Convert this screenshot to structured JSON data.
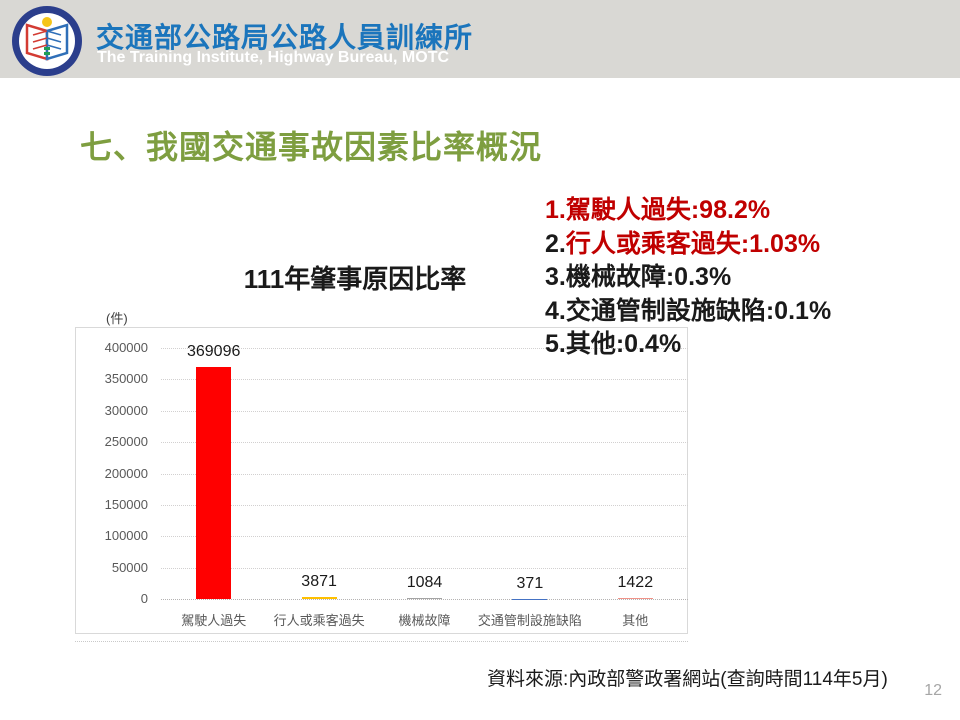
{
  "header": {
    "title_zh": "交通部公路局公路人員訓練所",
    "title_en": "The Training Institute, Highway Bureau, MOTC",
    "logo_name": "motc-training-institute-emblem",
    "bg_color": "#d9d8d4",
    "title_color": "#1b75bc"
  },
  "slide": {
    "title": "七、我國交通事故因素比率概況",
    "title_color": "#7e9e40",
    "source_note": "資料來源:內政部警政署網站(查詢時間114年5月)",
    "page_number": "12"
  },
  "factor_list": {
    "items": [
      {
        "prefix": "1.",
        "text": "駕駛人過失:98.2%",
        "prefix_color": "#c00000",
        "text_color": "#c00000"
      },
      {
        "prefix": "2.",
        "text": "行人或乘客過失:1.03%",
        "prefix_color": "#1a1a1a",
        "text_color": "#c00000"
      },
      {
        "prefix": "3.",
        "text": "機械故障:0.3%",
        "prefix_color": "#1a1a1a",
        "text_color": "#1a1a1a"
      },
      {
        "prefix": "4.",
        "text": "交通管制設施缺陷:0.1%",
        "prefix_color": "#1a1a1a",
        "text_color": "#1a1a1a"
      },
      {
        "prefix": "5.",
        "text": "其他:0.4%",
        "prefix_color": "#1a1a1a",
        "text_color": "#1a1a1a"
      }
    ]
  },
  "chart_data": {
    "type": "bar",
    "title": "111年肇事原因比率",
    "unit_label": "(件)",
    "categories": [
      "駕駛人過失",
      "行人或乘客過失",
      "機械故障",
      "交通管制設施缺陷",
      "其他"
    ],
    "values": [
      369096,
      3871,
      1084,
      371,
      1422
    ],
    "bar_colors": [
      "#ff0000",
      "#ffc000",
      "#a5a5a5",
      "#4472c4",
      "#f1948a"
    ],
    "data_labels": [
      "369096",
      "3871",
      "1084",
      "371",
      "1422"
    ],
    "xlabel": "",
    "ylabel": "(件)",
    "ylim": [
      0,
      400000
    ],
    "ytick_step": 50000,
    "yticks": [
      0,
      50000,
      100000,
      150000,
      200000,
      250000,
      300000,
      350000,
      400000
    ],
    "grid": true,
    "legend": false
  }
}
